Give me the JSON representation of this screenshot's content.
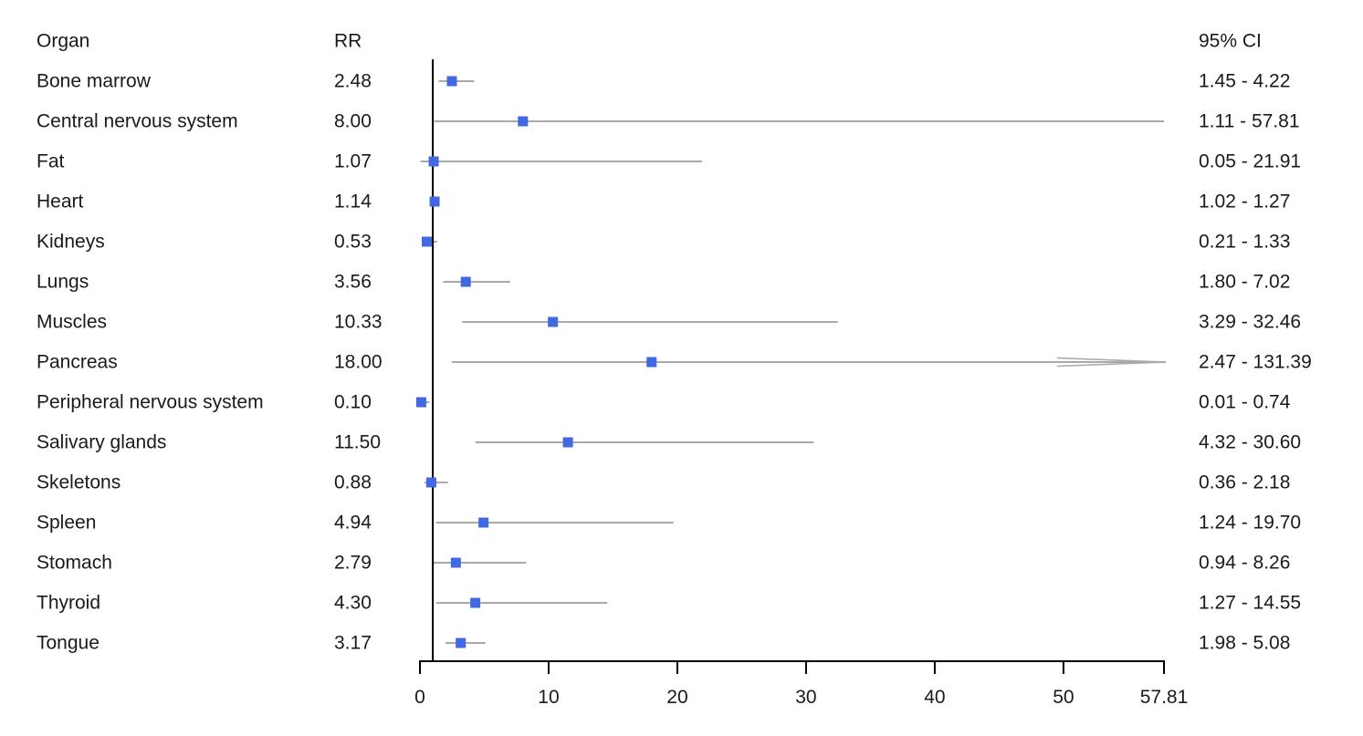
{
  "chart_data": {
    "type": "scatter",
    "variant": "forest-plot",
    "title": "",
    "xlabel": "",
    "ylabel": "",
    "grid": false,
    "columns": {
      "organ": "Organ",
      "rr": "RR",
      "ci": "95% CI"
    },
    "rows": [
      {
        "organ": "Bone marrow",
        "rr": "2.48",
        "rr_value": 2.48,
        "ci_low": 1.45,
        "ci_high": 4.22,
        "ci_text": "1.45 - 4.22",
        "clipped_high": false
      },
      {
        "organ": "Central nervous system",
        "rr": "8.00",
        "rr_value": 8.0,
        "ci_low": 1.11,
        "ci_high": 57.81,
        "ci_text": "1.11 - 57.81",
        "clipped_high": false
      },
      {
        "organ": "Fat",
        "rr": "1.07",
        "rr_value": 1.07,
        "ci_low": 0.05,
        "ci_high": 21.91,
        "ci_text": "0.05 - 21.91",
        "clipped_high": false
      },
      {
        "organ": "Heart",
        "rr": "1.14",
        "rr_value": 1.14,
        "ci_low": 1.02,
        "ci_high": 1.27,
        "ci_text": "1.02 - 1.27",
        "clipped_high": false
      },
      {
        "organ": "Kidneys",
        "rr": "0.53",
        "rr_value": 0.53,
        "ci_low": 0.21,
        "ci_high": 1.33,
        "ci_text": "0.21 - 1.33",
        "clipped_high": false
      },
      {
        "organ": "Lungs",
        "rr": "3.56",
        "rr_value": 3.56,
        "ci_low": 1.8,
        "ci_high": 7.02,
        "ci_text": "1.80 - 7.02",
        "clipped_high": false
      },
      {
        "organ": "Muscles",
        "rr": "10.33",
        "rr_value": 10.33,
        "ci_low": 3.29,
        "ci_high": 32.46,
        "ci_text": "3.29 - 32.46",
        "clipped_high": false
      },
      {
        "organ": "Pancreas",
        "rr": "18.00",
        "rr_value": 18.0,
        "ci_low": 2.47,
        "ci_high": 131.39,
        "ci_text": "2.47 - 131.39",
        "clipped_high": true
      },
      {
        "organ": "Peripheral nervous system",
        "rr": "0.10",
        "rr_value": 0.1,
        "ci_low": 0.01,
        "ci_high": 0.74,
        "ci_text": "0.01 - 0.74",
        "clipped_high": false
      },
      {
        "organ": "Salivary glands",
        "rr": "11.50",
        "rr_value": 11.5,
        "ci_low": 4.32,
        "ci_high": 30.6,
        "ci_text": "4.32 - 30.60",
        "clipped_high": false
      },
      {
        "organ": "Skeletons",
        "rr": "0.88",
        "rr_value": 0.88,
        "ci_low": 0.36,
        "ci_high": 2.18,
        "ci_text": "0.36 - 2.18",
        "clipped_high": false
      },
      {
        "organ": "Spleen",
        "rr": "4.94",
        "rr_value": 4.94,
        "ci_low": 1.24,
        "ci_high": 19.7,
        "ci_text": "1.24 - 19.70",
        "clipped_high": false
      },
      {
        "organ": "Stomach",
        "rr": "2.79",
        "rr_value": 2.79,
        "ci_low": 0.94,
        "ci_high": 8.26,
        "ci_text": "0.94 - 8.26",
        "clipped_high": false
      },
      {
        "organ": "Thyroid",
        "rr": "4.30",
        "rr_value": 4.3,
        "ci_low": 1.27,
        "ci_high": 14.55,
        "ci_text": "1.27 - 14.55",
        "clipped_high": false
      },
      {
        "organ": "Tongue",
        "rr": "3.17",
        "rr_value": 3.17,
        "ci_low": 1.98,
        "ci_high": 5.08,
        "ci_text": "1.98 - 5.08",
        "clipped_high": false
      }
    ],
    "x_axis": {
      "lim": [
        0,
        57.81
      ],
      "tick_values": [
        0,
        10,
        20,
        30,
        40,
        50,
        57.81
      ],
      "tick_labels": [
        "0",
        "10",
        "20",
        "30",
        "40",
        "50",
        "57.81"
      ]
    },
    "reference_line_x": 1,
    "legend": null,
    "colors": {
      "marker": "#4169e1",
      "ci_line": "#a9a9a9",
      "axis": "#000000",
      "text": "#1a1a1a"
    }
  }
}
